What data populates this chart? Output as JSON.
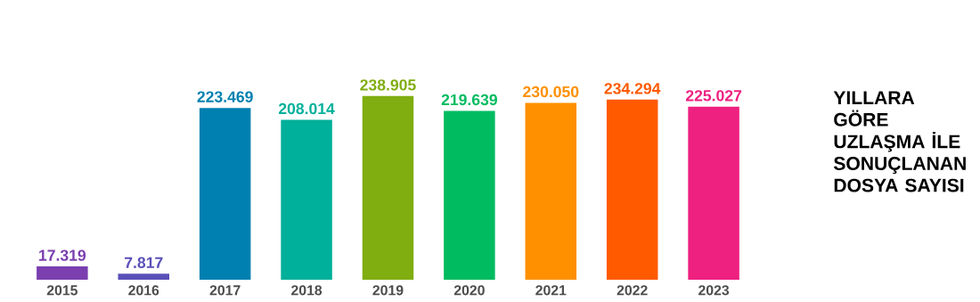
{
  "chart_data": {
    "type": "bar",
    "title": "YILLARA GÖRE UZLAŞMA İLE SONUÇLANAN DOSYA SAYISI",
    "categories": [
      "2015",
      "2016",
      "2017",
      "2018",
      "2019",
      "2020",
      "2021",
      "2022",
      "2023"
    ],
    "values": [
      17319,
      7817,
      223469,
      208014,
      238905,
      219639,
      230050,
      234294,
      225027
    ],
    "value_labels": [
      "17.319",
      "7.817",
      "223.469",
      "208.014",
      "238.905",
      "219.639",
      "230.050",
      "234.294",
      "225.027"
    ],
    "colors": [
      "#7b3fb0",
      "#5a4fb8",
      "#0080b0",
      "#00b09a",
      "#80ad10",
      "#00bb60",
      "#ff9000",
      "#ff5a00",
      "#ee2080"
    ]
  }
}
